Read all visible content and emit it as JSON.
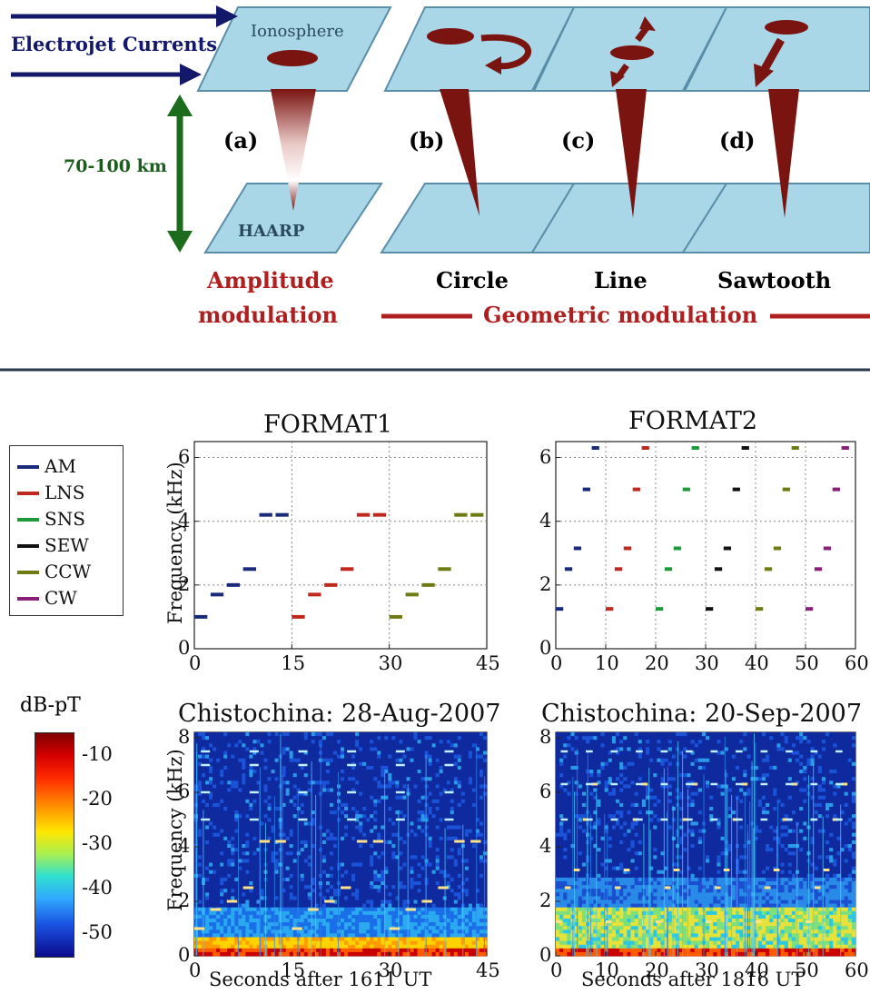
{
  "diagram": {
    "electrojet_label": "Electrojet Currents",
    "ionosphere_label": "Ionosphere",
    "haarp_label": "HAARP",
    "altitude_label": "70-100 km",
    "panel_labels": [
      "(a)",
      "(b)",
      "(c)",
      "(d)"
    ],
    "amplitude_label_1": "Amplitude",
    "amplitude_label_2": "modulation",
    "geometry_names": [
      "Circle",
      "Line",
      "Sawtooth"
    ],
    "geometric_label": "Geometric modulation",
    "colors": {
      "plane": "#a9d7e8",
      "plane_edge": "#5a8ea8",
      "beam": "#7a1410",
      "arrow_navy": "#14186a",
      "arrow_green": "#1d6b1d",
      "label_red": "#b01f1f"
    }
  },
  "legend": {
    "items": [
      {
        "name": "AM",
        "color": "#1a2a7a"
      },
      {
        "name": "LNS",
        "color": "#c0281c"
      },
      {
        "name": "SNS",
        "color": "#1f9a3a"
      },
      {
        "name": "SEW",
        "color": "#111111"
      },
      {
        "name": "CCW",
        "color": "#6f7a12"
      },
      {
        "name": "CW",
        "color": "#8a1f78"
      }
    ]
  },
  "colorbar": {
    "title": "dB-pT",
    "ticks": [
      "-10",
      "-20",
      "-30",
      "-40",
      "-50"
    ],
    "range": [
      -55,
      -5
    ]
  },
  "chart_data": [
    {
      "type": "line",
      "title": "FORMAT1",
      "ylabel": "Frequency (kHz)",
      "xlabel": "",
      "xlim": [
        0,
        45
      ],
      "ylim": [
        0,
        6.5
      ],
      "xticks": [
        "0",
        "15",
        "30",
        "45"
      ],
      "yticks": [
        "0",
        "2",
        "4",
        "6"
      ],
      "grid": true,
      "segment_duration_s": 2,
      "series": [
        {
          "name": "AM",
          "x": [
            0,
            2.5,
            5,
            7.5,
            10,
            12.5
          ],
          "y": [
            1.0,
            1.7,
            2.0,
            2.5,
            4.2,
            4.2
          ]
        },
        {
          "name": "LNS",
          "x": [
            15,
            17.5,
            20,
            22.5,
            25,
            27.5
          ],
          "y": [
            1.0,
            1.7,
            2.0,
            2.5,
            4.2,
            4.2
          ]
        },
        {
          "name": "CCW",
          "x": [
            30,
            32.5,
            35,
            37.5,
            40,
            42.5
          ],
          "y": [
            1.0,
            1.7,
            2.0,
            2.5,
            4.2,
            4.2
          ]
        }
      ]
    },
    {
      "type": "line",
      "title": "FORMAT2",
      "ylabel": "",
      "xlabel": "",
      "xlim": [
        0,
        60
      ],
      "ylim": [
        0,
        6.5
      ],
      "xticks": [
        "0",
        "10",
        "20",
        "30",
        "40",
        "50",
        "60"
      ],
      "yticks": [
        "0",
        "2",
        "4",
        "6"
      ],
      "grid": true,
      "segment_duration_s": 1.5,
      "series": [
        {
          "name": "AM",
          "x": [
            0,
            1.8,
            3.6,
            5.4,
            7.2
          ],
          "y": [
            1.25,
            2.5,
            3.15,
            5.0,
            6.3
          ]
        },
        {
          "name": "LNS",
          "x": [
            10,
            11.8,
            13.6,
            15.4,
            17.2
          ],
          "y": [
            1.25,
            2.5,
            3.15,
            5.0,
            6.3
          ]
        },
        {
          "name": "SNS",
          "x": [
            20,
            21.8,
            23.6,
            25.4,
            27.2
          ],
          "y": [
            1.25,
            2.5,
            3.15,
            5.0,
            6.3
          ]
        },
        {
          "name": "SEW",
          "x": [
            30,
            31.8,
            33.6,
            35.4,
            37.2
          ],
          "y": [
            1.25,
            2.5,
            3.15,
            5.0,
            6.3
          ]
        },
        {
          "name": "CCW",
          "x": [
            40,
            41.8,
            43.6,
            45.4,
            47.2
          ],
          "y": [
            1.25,
            2.5,
            3.15,
            5.0,
            6.3
          ]
        },
        {
          "name": "CW",
          "x": [
            50,
            51.8,
            53.6,
            55.4,
            57.2
          ],
          "y": [
            1.25,
            2.5,
            3.15,
            5.0,
            6.3
          ]
        }
      ]
    },
    {
      "type": "heatmap",
      "title": "Chistochina: 28-Aug-2007",
      "ylabel": "Frequency (kHz)",
      "xlabel": "Seconds after 1611 UT",
      "xlim": [
        0,
        45
      ],
      "ylim": [
        0,
        8.2
      ],
      "xticks": [
        "0",
        "15",
        "30",
        "45"
      ],
      "yticks": [
        "0",
        "2",
        "4",
        "6",
        "8"
      ],
      "tones_khz": [
        1.0,
        1.7,
        2.0,
        2.5,
        3.0,
        3.5,
        4.2,
        5.0,
        6.0,
        7.0,
        7.5
      ]
    },
    {
      "type": "heatmap",
      "title": "Chistochina: 20-Sep-2007",
      "ylabel": "",
      "xlabel": "Seconds after 1816 UT",
      "xlim": [
        0,
        60
      ],
      "ylim": [
        0,
        8.2
      ],
      "xticks": [
        "0",
        "10",
        "20",
        "30",
        "40",
        "50",
        "60"
      ],
      "yticks": [
        "0",
        "2",
        "4",
        "6",
        "8"
      ],
      "tones_khz": [
        1.25,
        2.5,
        3.15,
        5.0,
        6.3,
        7.5
      ]
    }
  ]
}
